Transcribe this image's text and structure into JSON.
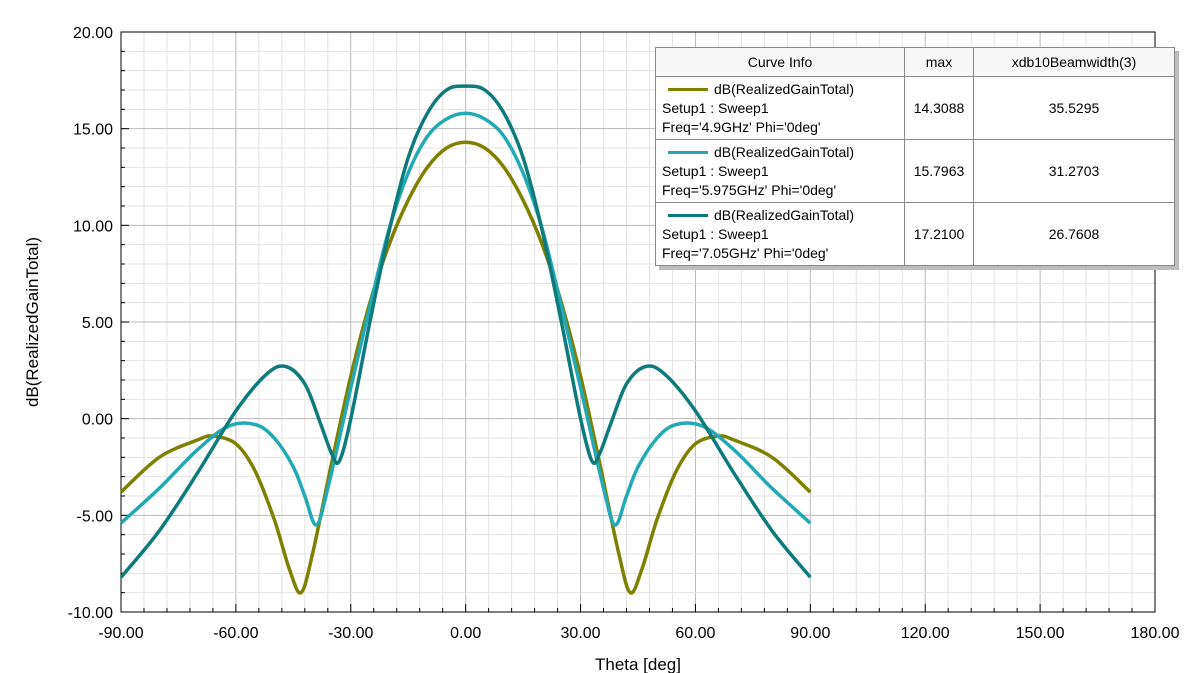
{
  "chart_data": {
    "type": "line",
    "xlabel": "Theta [deg]",
    "ylabel": "dB(RealizedGainTotal)",
    "xlim": [
      -90,
      180
    ],
    "ylim": [
      -10,
      20
    ],
    "x_ticks": [
      "-90.00",
      "-60.00",
      "-30.00",
      "0.00",
      "30.00",
      "60.00",
      "90.00",
      "120.00",
      "150.00",
      "180.00"
    ],
    "y_ticks": [
      "-10.00",
      "-5.00",
      "0.00",
      "5.00",
      "10.00",
      "15.00",
      "20.00"
    ],
    "grid": true,
    "legend_position": "top-right",
    "legend_headers": [
      "Curve Info",
      "max",
      "xdb10Beamwidth(3)"
    ],
    "series": [
      {
        "name": "dB(RealizedGainTotal)",
        "setup": "Setup1 : Sweep1",
        "freq": "Freq='4.9GHz' Phi='0deg'",
        "max": "14.3088",
        "beamwidth": "35.5295",
        "color": "#7f7f00",
        "x": [
          -90,
          -80,
          -70,
          -66,
          -60,
          -55,
          -50,
          -46,
          -43,
          -40,
          -35,
          -30,
          -25,
          -20,
          -15,
          -10,
          -5,
          0,
          5,
          10,
          15,
          20,
          25,
          30,
          35,
          40,
          43,
          46,
          50,
          55,
          60,
          66,
          70,
          80,
          90
        ],
        "y": [
          -3.8,
          -2.0,
          -1.1,
          -0.9,
          -1.3,
          -2.7,
          -5.2,
          -7.8,
          -9.0,
          -7.0,
          -2.3,
          2.2,
          6.0,
          9.0,
          11.3,
          13.0,
          14.0,
          14.3,
          14.0,
          13.0,
          11.3,
          9.0,
          6.0,
          2.2,
          -2.3,
          -7.0,
          -9.0,
          -7.8,
          -5.2,
          -2.7,
          -1.3,
          -0.9,
          -1.1,
          -2.0,
          -3.8
        ]
      },
      {
        "name": "dB(RealizedGainTotal)",
        "setup": "Setup1 : Sweep1",
        "freq": "Freq='5.975GHz' Phi='0deg'",
        "max": "15.7963",
        "beamwidth": "31.2703",
        "color": "#23a9b5",
        "x": [
          -90,
          -80,
          -70,
          -62,
          -55,
          -50,
          -45,
          -42,
          -39,
          -36,
          -30,
          -25,
          -20,
          -15,
          -10,
          -5,
          0,
          5,
          10,
          15,
          20,
          25,
          30,
          36,
          39,
          42,
          45,
          50,
          55,
          62,
          70,
          80,
          90
        ],
        "y": [
          -5.4,
          -3.6,
          -1.6,
          -0.4,
          -0.3,
          -1.0,
          -2.5,
          -4.0,
          -5.5,
          -3.6,
          1.6,
          5.8,
          9.8,
          12.7,
          14.6,
          15.5,
          15.8,
          15.5,
          14.6,
          12.7,
          9.8,
          5.8,
          1.6,
          -3.6,
          -5.5,
          -4.0,
          -2.5,
          -1.0,
          -0.3,
          -0.4,
          -1.6,
          -3.6,
          -5.4
        ]
      },
      {
        "name": "dB(RealizedGainTotal)",
        "setup": "Setup1 : Sweep1",
        "freq": "Freq='7.05GHz' Phi='0deg'",
        "max": "17.2100",
        "beamwidth": "26.7608",
        "color": "#0d7b7b",
        "x": [
          -90,
          -80,
          -70,
          -60,
          -52,
          -47,
          -42,
          -38,
          -35,
          -33,
          -30,
          -25,
          -20,
          -15,
          -10,
          -5,
          0,
          5,
          10,
          15,
          20,
          25,
          30,
          33,
          35,
          38,
          42,
          47,
          52,
          60,
          70,
          80,
          90
        ],
        "y": [
          -8.2,
          -5.8,
          -2.8,
          0.4,
          2.3,
          2.7,
          1.8,
          -0.2,
          -1.8,
          -2.2,
          0.0,
          5.0,
          9.7,
          13.5,
          15.8,
          17.0,
          17.2,
          17.0,
          15.8,
          13.5,
          9.7,
          5.0,
          0.0,
          -2.2,
          -1.8,
          -0.2,
          1.8,
          2.7,
          2.3,
          0.4,
          -2.8,
          -5.8,
          -8.2
        ]
      }
    ]
  }
}
